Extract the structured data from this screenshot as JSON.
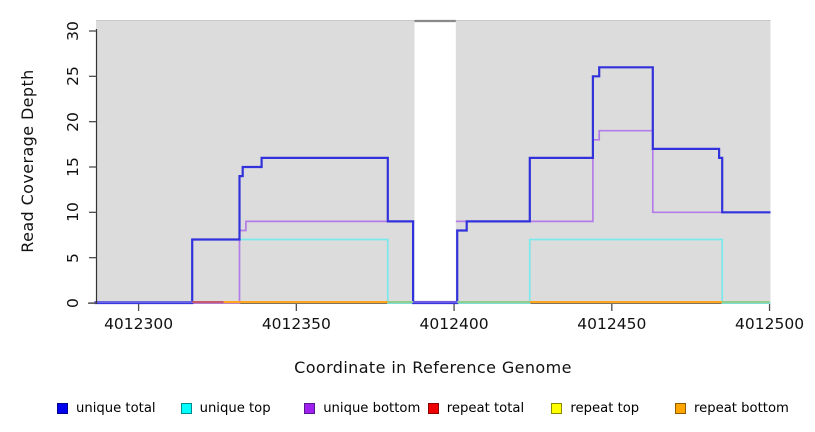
{
  "chart_data": {
    "type": "line",
    "subtype": "step-coverage",
    "title": "",
    "xlabel": "Coordinate in Reference Genome",
    "ylabel": "Read Coverage Depth",
    "xlim": [
      4012286.5,
      4012500.3
    ],
    "ylim": [
      0,
      31
    ],
    "x_ticks": [
      4012300,
      4012350,
      4012400,
      4012450,
      4012500
    ],
    "y_ticks": [
      0,
      5,
      10,
      15,
      20,
      25,
      30
    ],
    "grid": "off",
    "legend_position": "bottom",
    "panel_bg": "#dcdcdc",
    "panel_top_line": "#c8c8c8",
    "axis_color": "#4d4d4d",
    "masked_region": {
      "from": 4012387,
      "to": 4012401,
      "color": "#ffffff",
      "top_border": "#8a8a8a"
    },
    "series": [
      {
        "name": "unique total",
        "color": "#3232dc",
        "width": 2.2,
        "steps": [
          [
            4012286,
            0
          ],
          [
            4012317,
            7
          ],
          [
            4012332,
            14
          ],
          [
            4012333,
            15
          ],
          [
            4012339,
            16
          ],
          [
            4012379,
            9
          ],
          [
            4012387,
            0
          ],
          [
            4012401,
            8
          ],
          [
            4012404,
            9
          ],
          [
            4012424,
            16
          ],
          [
            4012444,
            25
          ],
          [
            4012446,
            26
          ],
          [
            4012463,
            17
          ],
          [
            4012484,
            16
          ],
          [
            4012485,
            10
          ]
        ]
      },
      {
        "name": "unique top",
        "color": "#79e9ea",
        "width": 1.7,
        "steps": [
          [
            4012286,
            0
          ],
          [
            4012317,
            7
          ],
          [
            4012379,
            0
          ],
          [
            4012424,
            7
          ],
          [
            4012485,
            0
          ]
        ]
      },
      {
        "name": "unique bottom",
        "color": "#b47ce8",
        "width": 1.7,
        "steps": [
          [
            4012286,
            0
          ],
          [
            4012332,
            8
          ],
          [
            4012334,
            9
          ],
          [
            4012444,
            18
          ],
          [
            4012446,
            19
          ],
          [
            4012463,
            10
          ]
        ]
      }
    ],
    "baseline_segments": [
      {
        "name": "zero-line-unique",
        "color": "#6a64e2",
        "from": 4012286,
        "to": 4012317
      },
      {
        "name": "zero-line-repeat-total",
        "color": "#c85a6e",
        "from": 4012317,
        "to": 4012327
      },
      {
        "name": "zero-line-repeat-bottom",
        "color": "#ffa51e",
        "from": 4012327,
        "to": 4012379
      },
      {
        "name": "zero-line-overlap",
        "color": "#8fce8f",
        "from": 4012379,
        "to": 4012387
      },
      {
        "name": "zero-line-masked",
        "color": "#6a5ae4",
        "from": 4012387,
        "to": 4012401
      },
      {
        "name": "zero-line-overlap",
        "color": "#8fce8f",
        "from": 4012401,
        "to": 4012424
      },
      {
        "name": "zero-line-repeat-bottom",
        "color": "#ffa51e",
        "from": 4012424,
        "to": 4012485
      },
      {
        "name": "zero-line-overlap",
        "color": "#8fce8f",
        "from": 4012485,
        "to": 4012500
      }
    ],
    "legend": [
      {
        "label": "unique total",
        "fill": "#0000ee",
        "border": "#000090"
      },
      {
        "label": "unique top",
        "fill": "#00ffff",
        "border": "#008b8b"
      },
      {
        "label": "unique bottom",
        "fill": "#a020f0",
        "border": "#551a8b"
      },
      {
        "label": "repeat total",
        "fill": "#ee0000",
        "border": "#8b0000"
      },
      {
        "label": "repeat top",
        "fill": "#ffff00",
        "border": "#8b8b00"
      },
      {
        "label": "repeat bottom",
        "fill": "#ffa500",
        "border": "#8b5a00"
      }
    ]
  }
}
